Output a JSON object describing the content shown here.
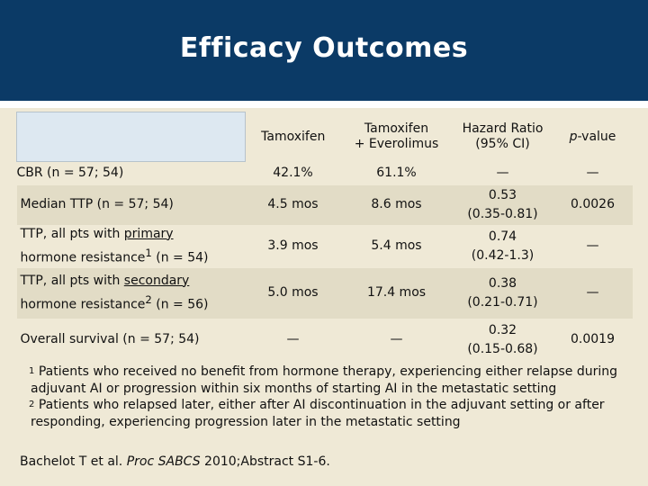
{
  "header": {
    "title": "Efficacy Outcomes",
    "bg_color": "#0b3a66"
  },
  "table": {
    "columns": [
      "Tamoxifen",
      "Tamoxifen\n+ Everolimus",
      "Hazard Ratio\n(95% CI)",
      "p-value"
    ],
    "rows": [
      {
        "label": "CBR (n = 57; 54)",
        "tam": "42.1%",
        "tam_evero": "61.1%",
        "hr": "—",
        "p": "—"
      },
      {
        "label": "Median TTP (n = 57; 54)",
        "tam": "4.5 mos",
        "tam_evero": "8.6 mos",
        "hr": "0.53\n(0.35-0.81)",
        "p": "0.0026"
      },
      {
        "label_pre": "TTP, all pts with ",
        "label_u": "primary",
        "label_post": "hormone resistance",
        "label_sup": "1",
        "label_tail": " (n = 54)",
        "tam": "3.9 mos",
        "tam_evero": "5.4 mos",
        "hr": "0.74\n(0.42-1.3)",
        "p": "—"
      },
      {
        "label_pre": "TTP, all pts with ",
        "label_u": "secondary",
        "label_post": "hormone resistance",
        "label_sup": "2",
        "label_tail": " (n = 56)",
        "tam": "5.0 mos",
        "tam_evero": "17.4 mos",
        "hr": "0.38\n(0.21-0.71)",
        "p": "—"
      },
      {
        "label": "Overall survival (n = 57; 54)",
        "tam": "—",
        "tam_evero": "—",
        "hr": "0.32\n(0.15-0.68)",
        "p": "0.0019"
      }
    ]
  },
  "footnotes": {
    "n1_sup": "1",
    "n1_text": "Patients who received no benefit from hormone therapy, experiencing either relapse during adjuvant AI or progression within six months of starting AI in the metastatic setting",
    "n2_sup": "2",
    "n2_text": "Patients who relapsed later, either after AI discontinuation in the adjuvant setting or after responding, experiencing progression later in the metastatic setting"
  },
  "source": {
    "pre": "Bachelot T et al. ",
    "journal": "Proc SABCS",
    "post": " 2010;Abstract S1-6."
  }
}
